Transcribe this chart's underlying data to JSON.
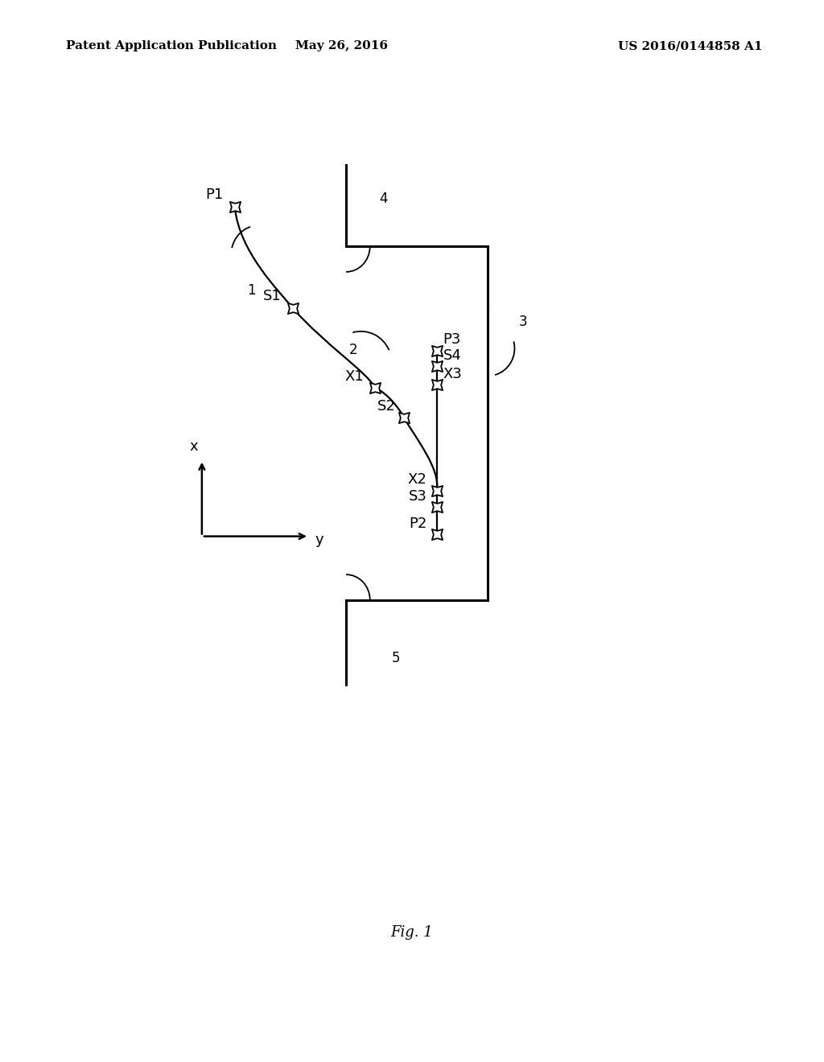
{
  "bg_color": "#ffffff",
  "header_left": "Patent Application Publication",
  "header_center": "May 26, 2016",
  "header_right": "US 2016/0144858 A1",
  "fig_label": "Fig. 1",
  "lw_structure": 2.2,
  "lw_curve": 1.6,
  "star_size": 180,
  "fontsize_label": 13,
  "fontsize_number": 12,
  "fontsize_header": 11,
  "fontsize_axis": 13,
  "fontsize_fig": 13
}
